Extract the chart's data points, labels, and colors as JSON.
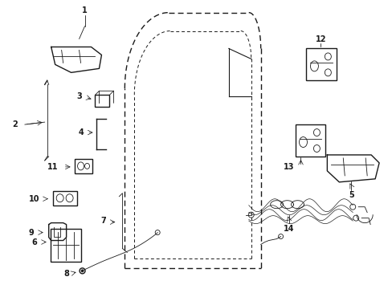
{
  "background_color": "#ffffff",
  "fig_width": 4.89,
  "fig_height": 3.6,
  "dpi": 100,
  "line_color": "#1a1a1a",
  "lw_main": 1.0,
  "lw_thin": 0.6,
  "fs_label": 7.0
}
